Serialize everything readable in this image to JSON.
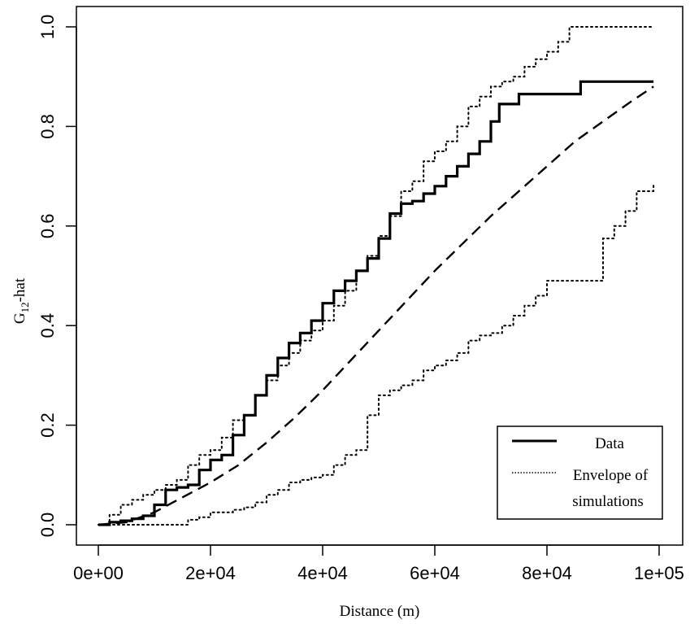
{
  "chart_data": {
    "type": "line",
    "xlabel": "Distance (m)",
    "ylabel": {
      "base": "G",
      "sub": "12",
      "rest": "-hat"
    },
    "xlim": [
      0,
      100000
    ],
    "ylim": [
      0,
      1.0
    ],
    "x_ticks": [
      {
        "value": 0,
        "label": "0e+00"
      },
      {
        "value": 20000,
        "label": "2e+04"
      },
      {
        "value": 40000,
        "label": "4e+04"
      },
      {
        "value": 60000,
        "label": "6e+04"
      },
      {
        "value": 80000,
        "label": "8e+04"
      },
      {
        "value": 100000,
        "label": "1e+05"
      }
    ],
    "y_ticks": [
      {
        "value": 0.0,
        "label": "0.0"
      },
      {
        "value": 0.2,
        "label": "0.2"
      },
      {
        "value": 0.4,
        "label": "0.4"
      },
      {
        "value": 0.6,
        "label": "0.6"
      },
      {
        "value": 0.8,
        "label": "0.8"
      },
      {
        "value": 1.0,
        "label": "1.0"
      }
    ],
    "grid": false,
    "legend": {
      "position": "bottom-right",
      "entries": [
        {
          "series": "data",
          "lines": [
            "Data"
          ]
        },
        {
          "series": "envelope",
          "lines": [
            "Envelope of",
            "simulations"
          ]
        }
      ]
    },
    "series": [
      {
        "id": "data",
        "style": "solid",
        "x": [
          0,
          2000,
          4000,
          6000,
          8000,
          10000,
          12000,
          14000,
          16000,
          18000,
          20000,
          22000,
          24000,
          26000,
          28000,
          30000,
          32000,
          34000,
          36000,
          38000,
          40000,
          42000,
          44000,
          46000,
          48000,
          50000,
          52000,
          54000,
          56000,
          58000,
          60000,
          62000,
          64000,
          66000,
          68000,
          70000,
          71500,
          75000,
          80000,
          85000,
          86000,
          90000,
          95000,
          99000
        ],
        "y": [
          0.0,
          0.005,
          0.008,
          0.012,
          0.018,
          0.04,
          0.07,
          0.075,
          0.08,
          0.11,
          0.13,
          0.14,
          0.18,
          0.22,
          0.26,
          0.3,
          0.335,
          0.365,
          0.385,
          0.41,
          0.445,
          0.47,
          0.49,
          0.51,
          0.535,
          0.575,
          0.625,
          0.645,
          0.65,
          0.665,
          0.68,
          0.7,
          0.72,
          0.745,
          0.77,
          0.81,
          0.845,
          0.865,
          0.865,
          0.865,
          0.89,
          0.89,
          0.89,
          0.89
        ]
      },
      {
        "id": "theoretical",
        "style": "dashed",
        "x": [
          0,
          5000,
          10000,
          15000,
          20000,
          25000,
          30000,
          35000,
          40000,
          45000,
          50000,
          55000,
          60000,
          65000,
          70000,
          75000,
          80000,
          85000,
          90000,
          95000,
          99000
        ],
        "y": [
          0.0,
          0.005,
          0.025,
          0.055,
          0.085,
          0.12,
          0.165,
          0.215,
          0.27,
          0.33,
          0.39,
          0.45,
          0.51,
          0.565,
          0.62,
          0.67,
          0.72,
          0.77,
          0.81,
          0.85,
          0.88
        ]
      },
      {
        "id": "envelope-upper",
        "style": "dotted",
        "x": [
          0,
          2000,
          4000,
          6000,
          8000,
          10000,
          12000,
          14000,
          16000,
          18000,
          20000,
          22000,
          24000,
          26000,
          28000,
          30000,
          32000,
          34000,
          36000,
          38000,
          40000,
          42000,
          44000,
          46000,
          48000,
          50000,
          52000,
          54000,
          56000,
          58000,
          60000,
          62000,
          64000,
          66000,
          68000,
          70000,
          72000,
          74000,
          76000,
          78000,
          80000,
          82000,
          84000,
          86000,
          90000,
          95000,
          99000
        ],
        "y": [
          0.0,
          0.02,
          0.04,
          0.05,
          0.06,
          0.07,
          0.08,
          0.09,
          0.12,
          0.14,
          0.15,
          0.175,
          0.21,
          0.22,
          0.26,
          0.29,
          0.32,
          0.345,
          0.37,
          0.39,
          0.41,
          0.44,
          0.47,
          0.51,
          0.54,
          0.58,
          0.62,
          0.67,
          0.69,
          0.73,
          0.75,
          0.77,
          0.8,
          0.84,
          0.86,
          0.88,
          0.89,
          0.9,
          0.92,
          0.935,
          0.95,
          0.97,
          1.0,
          1.0,
          1.0,
          1.0,
          1.0
        ]
      },
      {
        "id": "envelope-lower",
        "style": "dotted",
        "x": [
          0,
          5000,
          10000,
          14000,
          16000,
          18000,
          20000,
          24000,
          26000,
          28000,
          30000,
          32000,
          34000,
          36000,
          38000,
          40000,
          42000,
          44000,
          46000,
          48000,
          50000,
          52000,
          54000,
          56000,
          58000,
          60000,
          62000,
          64000,
          66000,
          68000,
          70000,
          72000,
          74000,
          76000,
          78000,
          80000,
          84000,
          86000,
          88000,
          90000,
          92000,
          94000,
          96000,
          99000
        ],
        "y": [
          0.0,
          0.0,
          0.0,
          0.0,
          0.01,
          0.015,
          0.025,
          0.03,
          0.035,
          0.045,
          0.06,
          0.07,
          0.085,
          0.09,
          0.095,
          0.1,
          0.12,
          0.14,
          0.15,
          0.22,
          0.26,
          0.27,
          0.28,
          0.29,
          0.31,
          0.32,
          0.33,
          0.345,
          0.37,
          0.38,
          0.385,
          0.4,
          0.42,
          0.44,
          0.46,
          0.49,
          0.49,
          0.49,
          0.49,
          0.575,
          0.6,
          0.63,
          0.67,
          0.685
        ]
      }
    ]
  }
}
